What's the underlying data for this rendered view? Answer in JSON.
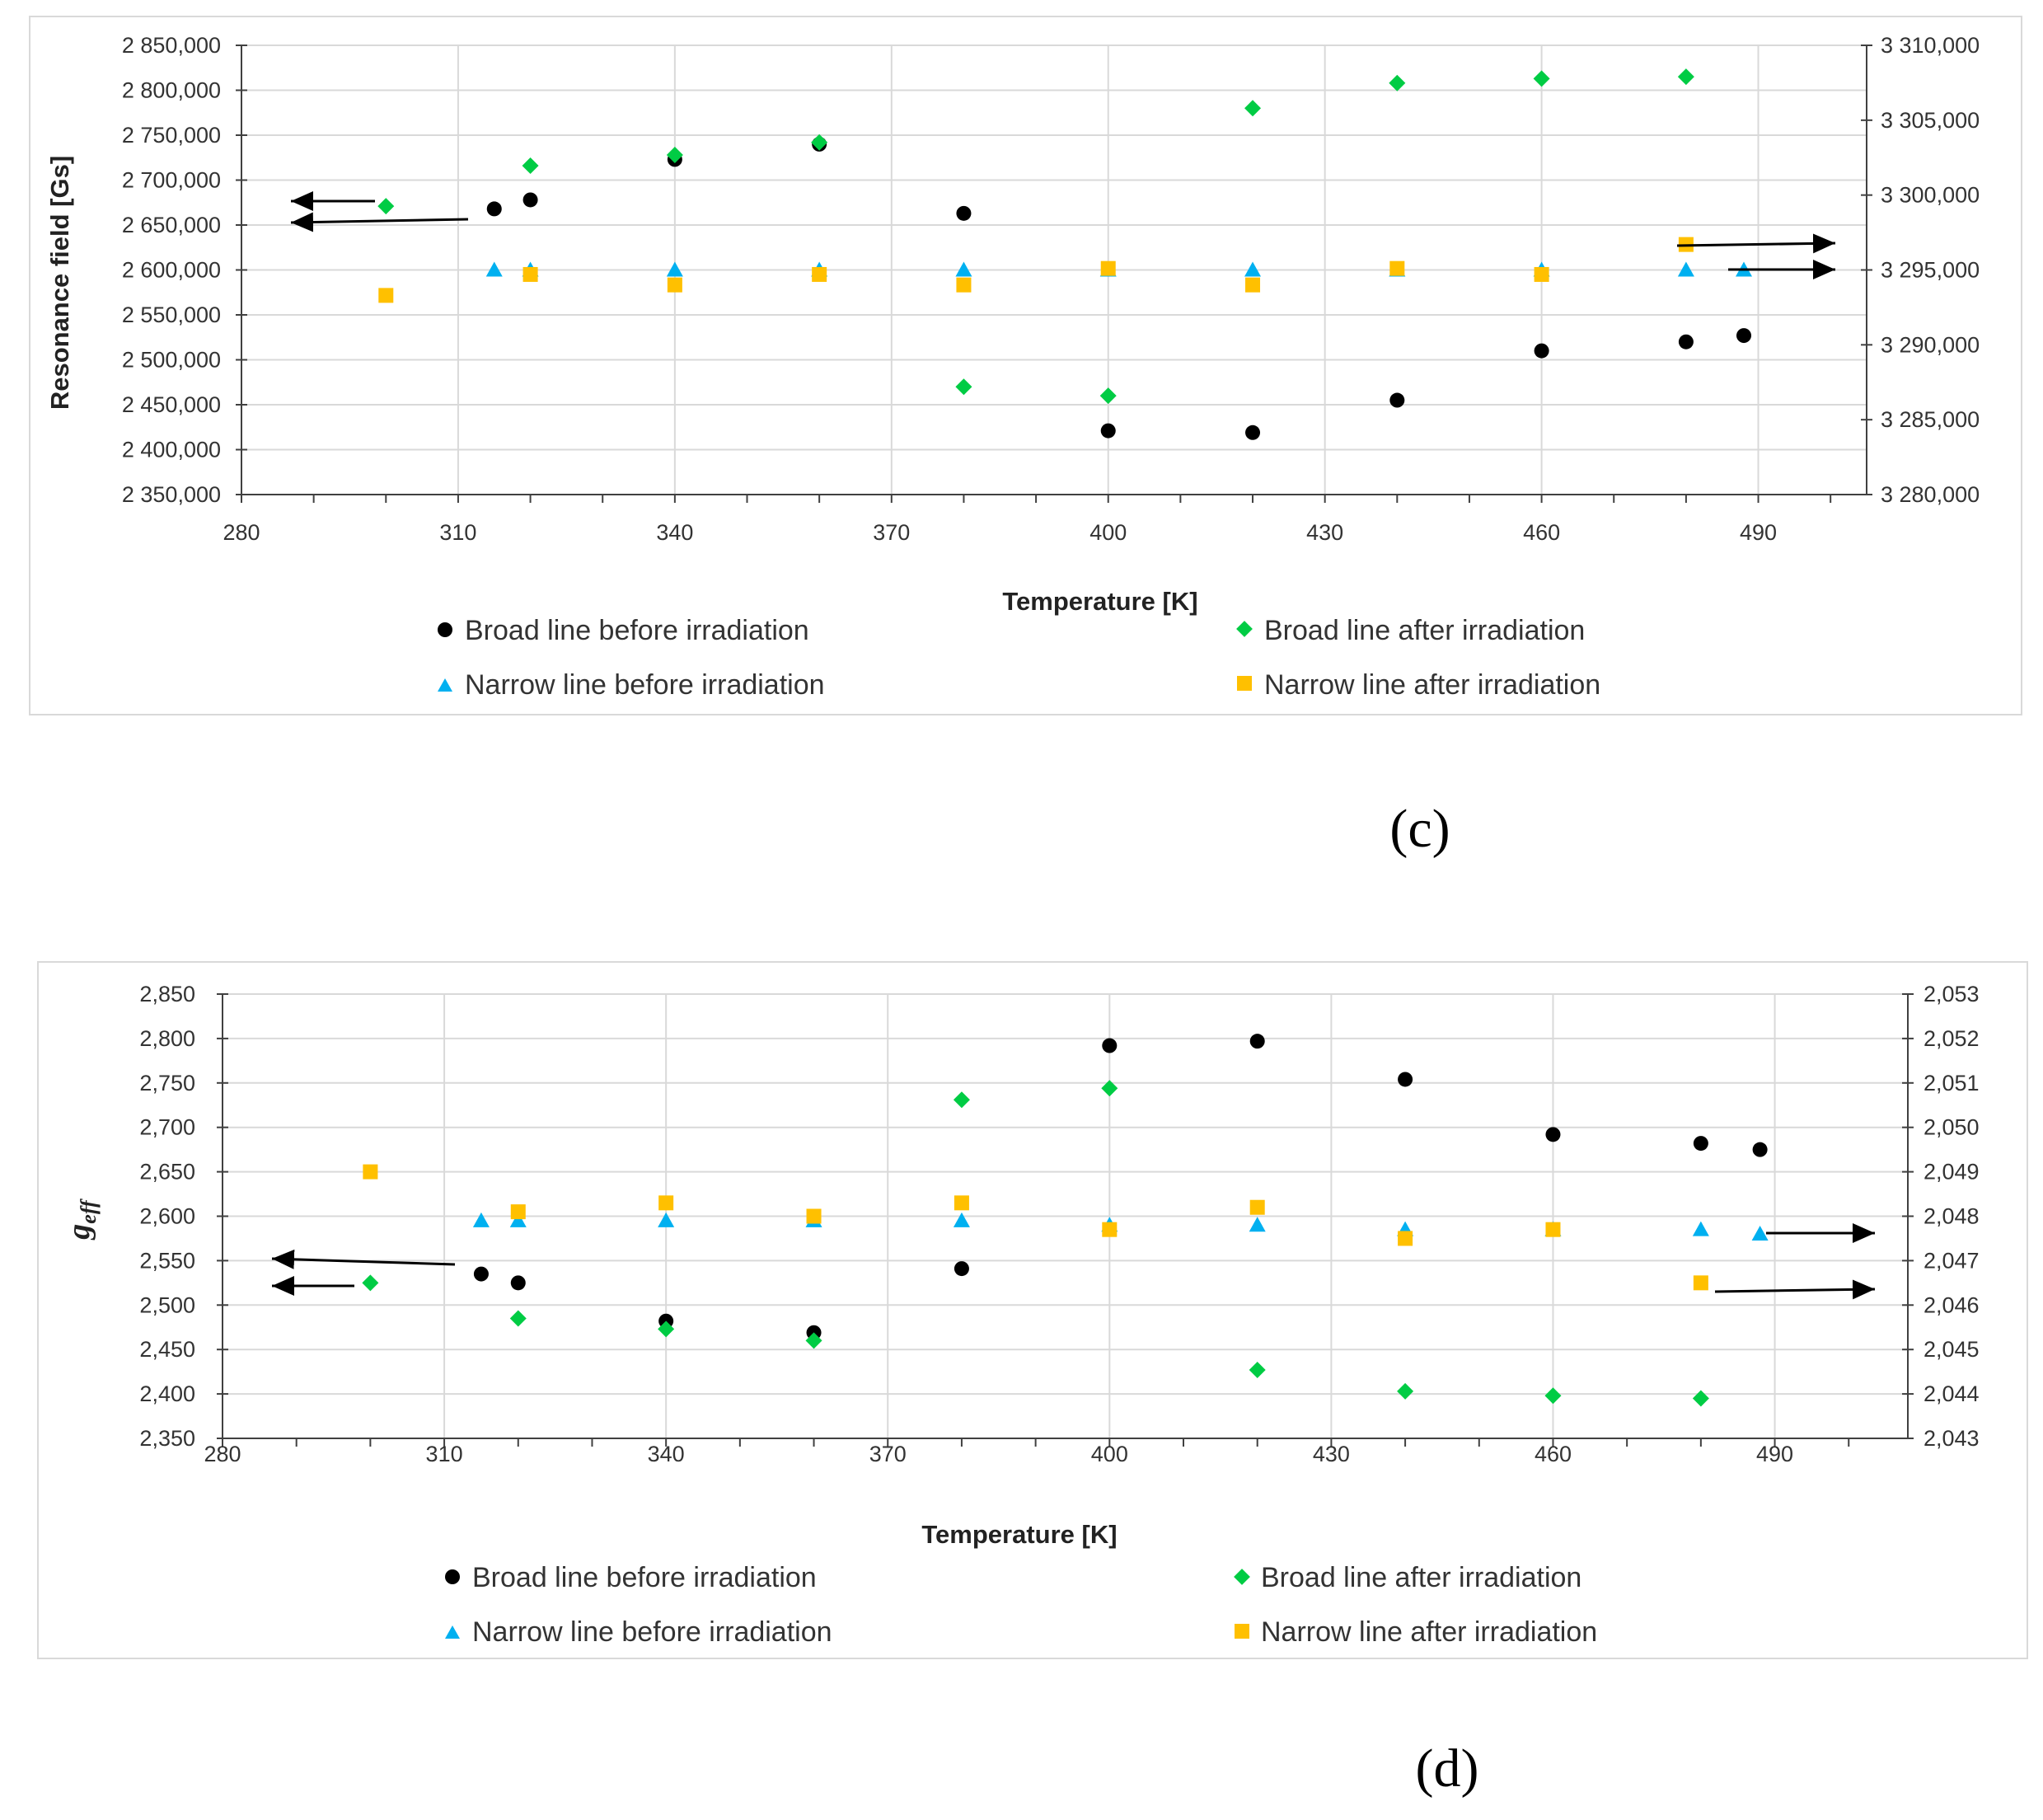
{
  "colors": {
    "broad_before": "#000000",
    "broad_after": "#00cc44",
    "narrow_before": "#00b0f0",
    "narrow_after": "#ffc000",
    "grid": "#d9d9d9",
    "frame": "#d9d9d9"
  },
  "chart_data": [
    {
      "type": "scatter",
      "panel_label": "(c)",
      "xlabel": "Temperature [K]",
      "ylabel": "Resonance field [Gs]",
      "ylabel_right": "",
      "xlim": [
        280,
        505
      ],
      "ylim": [
        2350000,
        2850000
      ],
      "ylim_right": [
        3280000,
        3310000
      ],
      "x_ticks": [
        "280",
        "310",
        "340",
        "370",
        "400",
        "430",
        "460",
        "490"
      ],
      "y_ticks": [
        "2 350,000",
        "2 400,000",
        "2 450,000",
        "2 500,000",
        "2 550,000",
        "2 600,000",
        "2 650,000",
        "2 700,000",
        "2 750,000",
        "2 800,000",
        "2 850,000"
      ],
      "y_ticks_right": [
        "3 280,000",
        "3 285,000",
        "3 290,000",
        "3 295,000",
        "3 300,000",
        "3 305,000",
        "3 310,000"
      ],
      "grid": true,
      "legend_position": "bottom",
      "series": [
        {
          "name": "Broad line before irradiation",
          "marker": "circle",
          "axis": "left",
          "color_key": "broad_before",
          "x": [
            315,
            320,
            340,
            360,
            380,
            400,
            420,
            440,
            460,
            480,
            488
          ],
          "y": [
            2668000,
            2678000,
            2723000,
            2740000,
            2663000,
            2421000,
            2419000,
            2455000,
            2510000,
            2520000,
            2527000
          ]
        },
        {
          "name": "Broad line after irradiation",
          "marker": "diamond",
          "axis": "left",
          "color_key": "broad_after",
          "x": [
            300,
            320,
            340,
            360,
            380,
            400,
            420,
            440,
            460,
            480
          ],
          "y": [
            2671000,
            2716000,
            2728000,
            2742000,
            2470000,
            2460000,
            2780000,
            2808000,
            2813000,
            2815000
          ]
        },
        {
          "name": "Narrow line before irradiation",
          "marker": "triangle",
          "axis": "right",
          "color_key": "narrow_before",
          "x": [
            315,
            320,
            340,
            360,
            380,
            400,
            420,
            440,
            460,
            480,
            488
          ],
          "y": [
            3295000,
            3295000,
            3295000,
            3295000,
            3295000,
            3295000,
            3295000,
            3295000,
            3295000,
            3295000,
            3295000
          ]
        },
        {
          "name": "Narrow line after irradiation",
          "marker": "square",
          "axis": "right",
          "color_key": "narrow_after",
          "x": [
            300,
            320,
            340,
            360,
            380,
            400,
            420,
            440,
            460,
            480
          ],
          "y": [
            3293300,
            3294700,
            3294000,
            3294700,
            3294000,
            3295100,
            3294000,
            3295100,
            3294700,
            3296700
          ]
        }
      ]
    },
    {
      "type": "scatter",
      "panel_label": "(d)",
      "xlabel": "Temperature [K]",
      "ylabel": "geff",
      "ylabel_right": "",
      "xlim": [
        280,
        508
      ],
      "ylim": [
        2.35,
        2.85
      ],
      "ylim_right": [
        2.043,
        2.053
      ],
      "x_ticks": [
        "280",
        "310",
        "340",
        "370",
        "400",
        "430",
        "460",
        "490"
      ],
      "y_ticks": [
        "2,350",
        "2,400",
        "2,450",
        "2,500",
        "2,550",
        "2,600",
        "2,650",
        "2,700",
        "2,750",
        "2,800",
        "2,850"
      ],
      "y_ticks_right": [
        "2,043",
        "2,044",
        "2,045",
        "2,046",
        "2,047",
        "2,048",
        "2,049",
        "2,050",
        "2,051",
        "2,052",
        "2,053"
      ],
      "grid": true,
      "legend_position": "bottom",
      "series": [
        {
          "name": "Broad line before irradiation",
          "marker": "circle",
          "axis": "left",
          "color_key": "broad_before",
          "x": [
            315,
            320,
            340,
            360,
            380,
            400,
            420,
            440,
            460,
            480,
            488
          ],
          "y": [
            2.535,
            2.525,
            2.482,
            2.469,
            2.541,
            2.792,
            2.797,
            2.754,
            2.692,
            2.682,
            2.675
          ]
        },
        {
          "name": "Broad line after irradiation",
          "marker": "diamond",
          "axis": "left",
          "color_key": "broad_after",
          "x": [
            300,
            320,
            340,
            360,
            380,
            400,
            420,
            440,
            460,
            480
          ],
          "y": [
            2.525,
            2.485,
            2.473,
            2.46,
            2.731,
            2.744,
            2.427,
            2.403,
            2.398,
            2.395
          ]
        },
        {
          "name": "Narrow line before irradiation",
          "marker": "triangle",
          "axis": "right",
          "color_key": "narrow_before",
          "x": [
            315,
            320,
            340,
            360,
            380,
            400,
            420,
            440,
            460,
            480,
            488
          ],
          "y": [
            2.0479,
            2.0479,
            2.0479,
            2.0479,
            2.0479,
            2.0478,
            2.0478,
            2.0477,
            2.0477,
            2.0477,
            2.0476
          ]
        },
        {
          "name": "Narrow line after irradiation",
          "marker": "square",
          "axis": "right",
          "color_key": "narrow_after",
          "x": [
            300,
            320,
            340,
            360,
            380,
            400,
            420,
            440,
            460,
            480
          ],
          "y": [
            2.049,
            2.0481,
            2.0483,
            2.048,
            2.0483,
            2.0477,
            2.0482,
            2.0475,
            2.0477,
            2.0465
          ]
        }
      ]
    }
  ]
}
